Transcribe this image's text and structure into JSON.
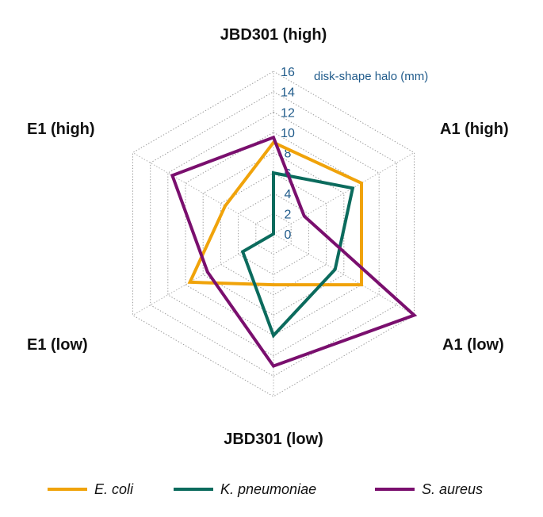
{
  "chart_data": {
    "type": "radar",
    "axis_unit": "disk-shape halo (mm)",
    "range": [
      0,
      16
    ],
    "ticks": [
      0,
      2,
      4,
      6,
      8,
      10,
      12,
      14,
      16
    ],
    "categories": [
      "JBD301 (high)",
      "A1 (high)",
      "A1 (low)",
      "JBD301 (low)",
      "E1 (low)",
      "E1 (high)"
    ],
    "series": [
      {
        "name": "E. coli",
        "color": "#f0a30a",
        "values": [
          9.0,
          10.0,
          10.0,
          5.0,
          9.5,
          5.5
        ]
      },
      {
        "name": "K. pneumoniae",
        "color": "#0b6b5d",
        "values": [
          6.0,
          9.0,
          7.0,
          10.0,
          3.5,
          0.0
        ]
      },
      {
        "name": "S. aureus",
        "color": "#7a0f6e",
        "values": [
          9.5,
          3.5,
          16.0,
          13.0,
          7.5,
          11.5
        ]
      }
    ],
    "grid": true,
    "legend_position": "bottom"
  }
}
